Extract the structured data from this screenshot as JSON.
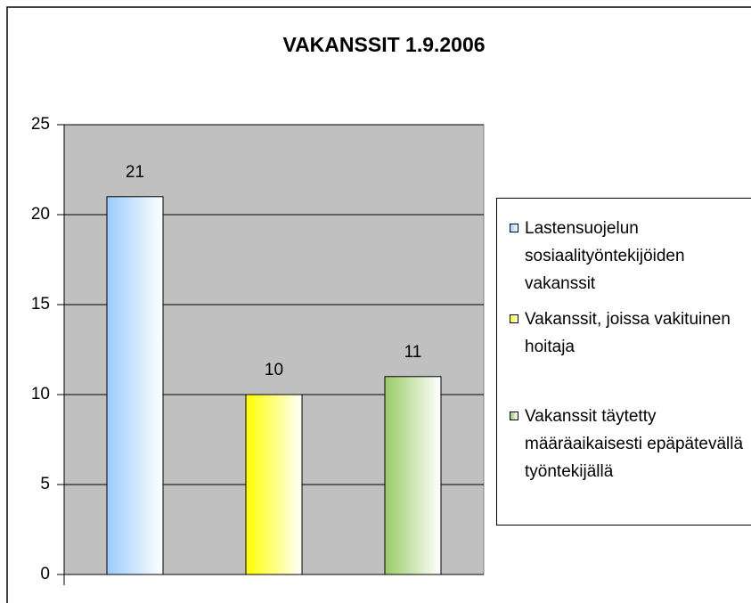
{
  "chart_data": {
    "type": "bar",
    "title": "VAKANSSIT 1.9.2006",
    "categories": [
      null
    ],
    "series": [
      {
        "name": "Lastensuojelun sosiaalityöntekijöiden vakanssit",
        "color": "#99ccff",
        "values": [
          21
        ]
      },
      {
        "name": "Vakanssit, joissa vakituinen hoitaja",
        "color": "#ffff00",
        "values": [
          10
        ]
      },
      {
        "name": "Vakanssit täytetty määräaikaisesti epäpätevällä työntekijällä",
        "color": "#99cc66",
        "values": [
          11
        ]
      }
    ],
    "ylim": [
      0,
      25
    ],
    "yticks": [
      0,
      5,
      10,
      15,
      20,
      25
    ],
    "grid": true,
    "legend": "right"
  }
}
